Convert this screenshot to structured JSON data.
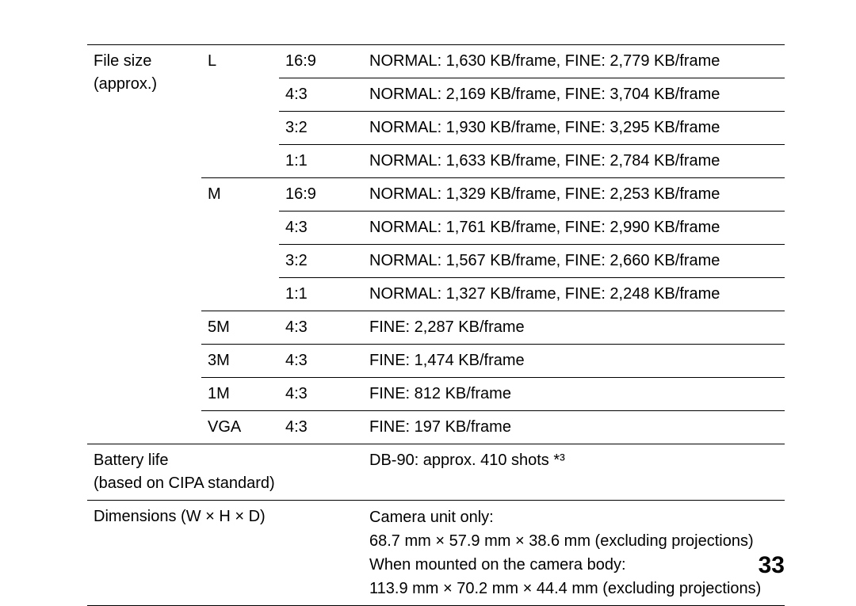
{
  "page_number": "33",
  "labels": {
    "file_size": "File size",
    "file_size_sub": "(approx.)",
    "battery_life": "Battery life",
    "battery_life_sub": "(based on CIPA standard)",
    "dimensions": "Dimensions (W × H × D)"
  },
  "sizes": {
    "L": "L",
    "M": "M",
    "5M": "5M",
    "3M": "3M",
    "1M": "1M",
    "VGA": "VGA"
  },
  "ratios": {
    "r169": "16:9",
    "r43": "4:3",
    "r32": "3:2",
    "r11": "1:1"
  },
  "values": {
    "L_169": "NORMAL: 1,630 KB/frame, FINE: 2,779 KB/frame",
    "L_43": "NORMAL: 2,169 KB/frame, FINE: 3,704 KB/frame",
    "L_32": "NORMAL: 1,930 KB/frame, FINE: 3,295 KB/frame",
    "L_11": "NORMAL: 1,633 KB/frame, FINE: 2,784 KB/frame",
    "M_169": "NORMAL: 1,329 KB/frame, FINE: 2,253 KB/frame",
    "M_43": "NORMAL: 1,761 KB/frame, FINE: 2,990 KB/frame",
    "M_32": "NORMAL: 1,567 KB/frame, FINE: 2,660 KB/frame",
    "M_11": "NORMAL: 1,327 KB/frame, FINE: 2,248 KB/frame",
    "5M_43": "FINE: 2,287 KB/frame",
    "3M_43": "FINE: 1,474 KB/frame",
    "1M_43": "FINE: 812 KB/frame",
    "VGA_43": "FINE: 197 KB/frame",
    "battery": "DB-90: approx. 410 shots *³",
    "dim_line1": "Camera unit only:",
    "dim_line2": "68.7 mm × 57.9 mm × 38.6 mm (excluding projections)",
    "dim_line3": "When mounted on the camera body:",
    "dim_line4": "113.9 mm × 70.2 mm × 44.4 mm (excluding projections)"
  }
}
